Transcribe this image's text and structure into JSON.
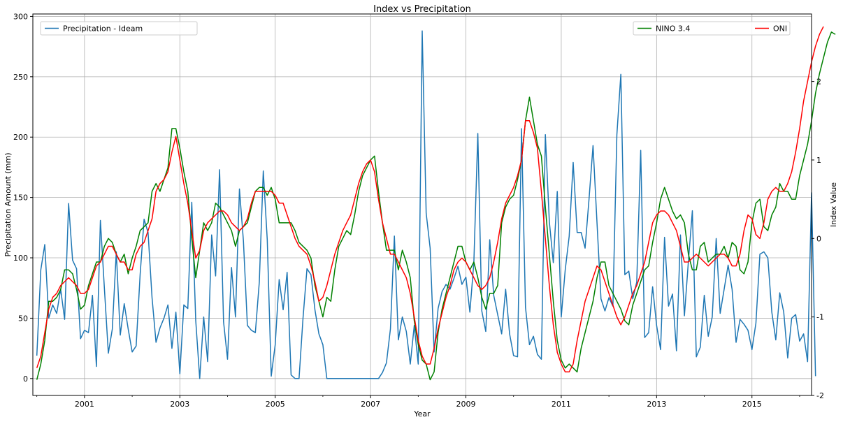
{
  "chart_data": {
    "type": "line",
    "title": "Index vs Precipitation",
    "xlabel": "Year",
    "ylabel_left": "Precipitation Amount (mm)",
    "ylabel_right": "Index Value",
    "x_start": "2000-01",
    "x_end": "2015-12",
    "xlim": [
      "1999-12",
      "2016-04"
    ],
    "x_ticks": [
      "2001",
      "2003",
      "2005",
      "2007",
      "2009",
      "2011",
      "2013",
      "2015"
    ],
    "x_tick_minor": [
      "2000",
      "2002",
      "2004",
      "2006",
      "2008",
      "2010",
      "2012",
      "2014",
      "2016"
    ],
    "ylim_left": [
      -14,
      302
    ],
    "yticks_left": [
      0,
      50,
      100,
      150,
      200,
      250,
      300
    ],
    "ylim_right": [
      -2,
      2.86
    ],
    "yticks_right": [
      -2,
      -1,
      0,
      1,
      2
    ],
    "grid": true,
    "legends": [
      {
        "placement": "upper-left",
        "entries": [
          "Precipitation - Ideam"
        ]
      },
      {
        "placement": "upper-right",
        "entries": [
          "NINO 3.4",
          "ONI"
        ]
      }
    ],
    "series": [
      {
        "name": "Precipitation - Ideam",
        "axis": "left",
        "color": "#1f77b4",
        "values": [
          19,
          90,
          111,
          50,
          61,
          54,
          74,
          49,
          145,
          98,
          91,
          33,
          40,
          38,
          69,
          10,
          131,
          75,
          21,
          41,
          105,
          36,
          62,
          41,
          22,
          27,
          86,
          132,
          121,
          67,
          30,
          42,
          50,
          61,
          25,
          55,
          4,
          61,
          58,
          146,
          48,
          0,
          51,
          14,
          119,
          85,
          173,
          47,
          16,
          92,
          51,
          157,
          114,
          44,
          40,
          38,
          80,
          172,
          115,
          2,
          28,
          82,
          57,
          88,
          3,
          0,
          0,
          50,
          91,
          86,
          57,
          37,
          28,
          0,
          0,
          0,
          0,
          0,
          0,
          0,
          0,
          0,
          0,
          0,
          0,
          0,
          0,
          5,
          13,
          41,
          118,
          32,
          51,
          39,
          12,
          44,
          12,
          288,
          137,
          108,
          22,
          58,
          72,
          78,
          74,
          83,
          93,
          78,
          84,
          55,
          96,
          203,
          56,
          39,
          115,
          69,
          53,
          37,
          74,
          37,
          19,
          18,
          207,
          59,
          28,
          35,
          20,
          16,
          202,
          130,
          96,
          155,
          51,
          90,
          118,
          179,
          121,
          121,
          108,
          149,
          193,
          129,
          66,
          56,
          67,
          60,
          202,
          252,
          86,
          89,
          66,
          80,
          189,
          34,
          38,
          76,
          44,
          24,
          117,
          60,
          70,
          23,
          119,
          52,
          97,
          139,
          18,
          26,
          69,
          35,
          51,
          116,
          54,
          74,
          94,
          74,
          30,
          49,
          45,
          40,
          24,
          46,
          103,
          105,
          100,
          55,
          32,
          71,
          55,
          17,
          50,
          53,
          31,
          37,
          14,
          154,
          2
        ]
      },
      {
        "name": "NINO 3.4",
        "axis": "right",
        "color": "#008000",
        "values": [
          -1.8,
          -1.6,
          -1.3,
          -0.8,
          -0.8,
          -0.75,
          -0.65,
          -0.4,
          -0.4,
          -0.45,
          -0.65,
          -0.9,
          -0.85,
          -0.6,
          -0.45,
          -0.3,
          -0.3,
          -0.1,
          0.0,
          -0.05,
          -0.2,
          -0.3,
          -0.2,
          -0.45,
          -0.25,
          -0.1,
          0.1,
          0.15,
          0.2,
          0.6,
          0.7,
          0.6,
          0.75,
          0.9,
          1.4,
          1.4,
          1.15,
          0.85,
          0.6,
          0.0,
          -0.5,
          -0.15,
          0.2,
          0.1,
          0.2,
          0.45,
          0.4,
          0.3,
          0.2,
          0.1,
          -0.1,
          0.1,
          0.15,
          0.2,
          0.4,
          0.6,
          0.65,
          0.65,
          0.55,
          0.65,
          0.5,
          0.2,
          0.2,
          0.2,
          0.2,
          0.1,
          -0.05,
          -0.1,
          -0.15,
          -0.25,
          -0.6,
          -0.8,
          -1.0,
          -0.75,
          -0.8,
          -0.4,
          -0.1,
          0.0,
          0.1,
          0.05,
          0.3,
          0.6,
          0.8,
          0.9,
          1.0,
          1.05,
          0.6,
          0.2,
          -0.15,
          -0.15,
          -0.15,
          -0.4,
          -0.15,
          -0.3,
          -0.5,
          -1.05,
          -1.35,
          -1.55,
          -1.6,
          -1.8,
          -1.7,
          -1.2,
          -0.9,
          -0.7,
          -0.5,
          -0.3,
          -0.1,
          -0.1,
          -0.3,
          -0.4,
          -0.3,
          -0.5,
          -0.75,
          -0.9,
          -0.7,
          -0.7,
          -0.6,
          0.2,
          0.4,
          0.5,
          0.55,
          0.75,
          1.0,
          1.5,
          1.8,
          1.5,
          1.2,
          1.05,
          0.4,
          -0.2,
          -0.8,
          -1.3,
          -1.55,
          -1.65,
          -1.6,
          -1.65,
          -1.7,
          -1.4,
          -1.2,
          -1.0,
          -0.8,
          -0.5,
          -0.3,
          -0.3,
          -0.6,
          -0.7,
          -0.8,
          -0.9,
          -1.05,
          -1.1,
          -0.85,
          -0.7,
          -0.55,
          -0.4,
          -0.35,
          -0.05,
          0.2,
          0.5,
          0.65,
          0.5,
          0.35,
          0.25,
          0.3,
          0.2,
          -0.2,
          -0.4,
          -0.4,
          -0.1,
          -0.05,
          -0.3,
          -0.25,
          -0.2,
          -0.2,
          -0.1,
          -0.25,
          -0.05,
          -0.1,
          -0.4,
          -0.45,
          -0.3,
          0.2,
          0.45,
          0.5,
          0.15,
          0.1,
          0.3,
          0.4,
          0.7,
          0.6,
          0.6,
          0.5,
          0.5,
          0.8,
          1.0,
          1.2,
          1.5,
          1.85,
          2.1,
          2.3,
          2.5,
          2.63,
          2.6
        ]
      },
      {
        "name": "ONI",
        "axis": "right",
        "color": "#ff0000",
        "values": [
          -1.65,
          -1.5,
          -1.2,
          -0.9,
          -0.75,
          -0.7,
          -0.6,
          -0.55,
          -0.5,
          -0.55,
          -0.6,
          -0.7,
          -0.7,
          -0.65,
          -0.5,
          -0.35,
          -0.3,
          -0.2,
          -0.1,
          -0.1,
          -0.2,
          -0.3,
          -0.3,
          -0.4,
          -0.4,
          -0.2,
          -0.1,
          -0.05,
          0.1,
          0.25,
          0.6,
          0.7,
          0.75,
          0.85,
          1.1,
          1.3,
          1.0,
          0.7,
          0.45,
          0.1,
          -0.25,
          -0.15,
          0.1,
          0.2,
          0.25,
          0.3,
          0.35,
          0.35,
          0.3,
          0.2,
          0.15,
          0.1,
          0.15,
          0.25,
          0.45,
          0.6,
          0.6,
          0.6,
          0.6,
          0.6,
          0.55,
          0.45,
          0.45,
          0.3,
          0.15,
          0.0,
          -0.1,
          -0.15,
          -0.2,
          -0.35,
          -0.55,
          -0.8,
          -0.75,
          -0.6,
          -0.4,
          -0.2,
          -0.05,
          0.1,
          0.2,
          0.3,
          0.5,
          0.7,
          0.85,
          0.95,
          1.0,
          0.85,
          0.5,
          0.2,
          0.0,
          -0.2,
          -0.2,
          -0.3,
          -0.4,
          -0.5,
          -0.7,
          -1.0,
          -1.3,
          -1.5,
          -1.6,
          -1.6,
          -1.4,
          -1.15,
          -0.95,
          -0.75,
          -0.6,
          -0.4,
          -0.3,
          -0.25,
          -0.3,
          -0.4,
          -0.5,
          -0.6,
          -0.65,
          -0.6,
          -0.5,
          -0.3,
          -0.05,
          0.25,
          0.45,
          0.55,
          0.65,
          0.8,
          1.0,
          1.5,
          1.5,
          1.35,
          1.15,
          0.6,
          0.0,
          -0.6,
          -1.1,
          -1.45,
          -1.6,
          -1.7,
          -1.7,
          -1.6,
          -1.3,
          -1.05,
          -0.8,
          -0.65,
          -0.5,
          -0.35,
          -0.4,
          -0.55,
          -0.7,
          -0.85,
          -1.0,
          -1.1,
          -1.0,
          -0.85,
          -0.7,
          -0.6,
          -0.45,
          -0.3,
          -0.05,
          0.2,
          0.3,
          0.35,
          0.35,
          0.3,
          0.2,
          0.1,
          -0.1,
          -0.3,
          -0.3,
          -0.25,
          -0.2,
          -0.25,
          -0.3,
          -0.35,
          -0.3,
          -0.25,
          -0.2,
          -0.2,
          -0.25,
          -0.35,
          -0.35,
          -0.2,
          0.1,
          0.3,
          0.25,
          0.05,
          0.0,
          0.2,
          0.5,
          0.6,
          0.65,
          0.6,
          0.6,
          0.7,
          0.85,
          1.1,
          1.4,
          1.75,
          2.0,
          2.25,
          2.45,
          2.6,
          2.7
        ]
      }
    ]
  }
}
